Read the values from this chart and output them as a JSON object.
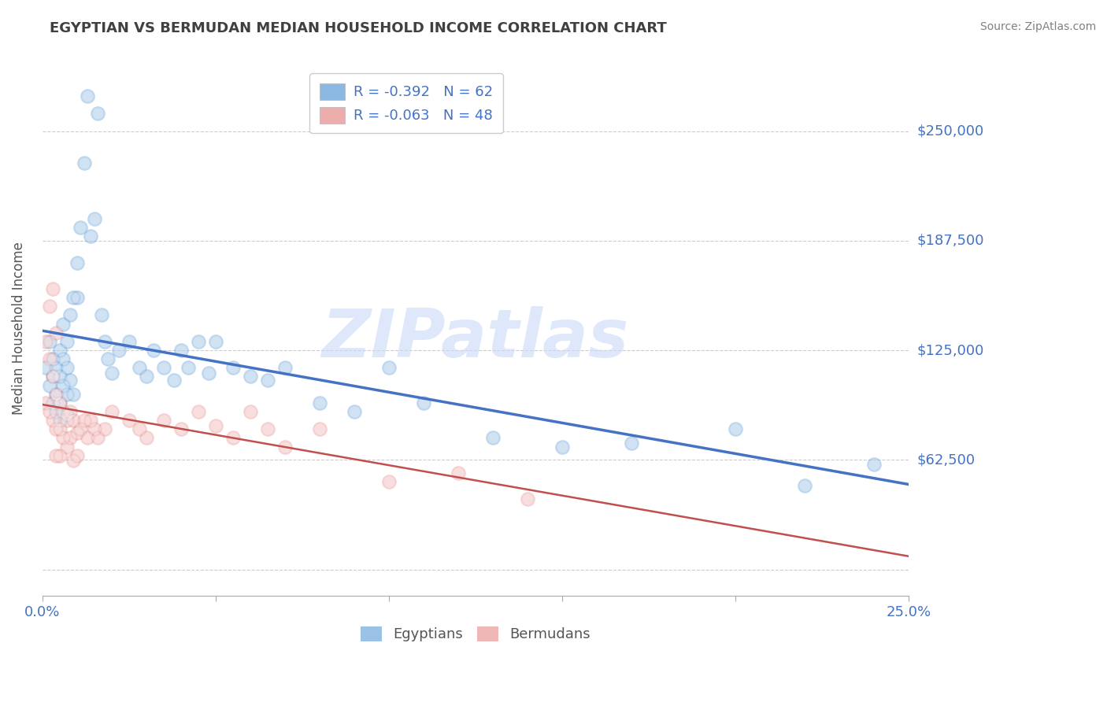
{
  "title": "EGYPTIAN VS BERMUDAN MEDIAN HOUSEHOLD INCOME CORRELATION CHART",
  "source": "Source: ZipAtlas.com",
  "ylabel": "Median Household Income",
  "xlim": [
    0.0,
    0.25
  ],
  "ylim": [
    -15000,
    290000
  ],
  "yticks": [
    0,
    62500,
    125000,
    187500,
    250000
  ],
  "ytick_labels": [
    "",
    "$62,500",
    "$125,000",
    "$187,500",
    "$250,000"
  ],
  "xticks": [
    0.0,
    0.05,
    0.1,
    0.15,
    0.2,
    0.25
  ],
  "xtick_labels": [
    "0.0%",
    "",
    "",
    "",
    "",
    "25.0%"
  ],
  "legend_entries": [
    {
      "label": "R = -0.392   N = 62",
      "color": "#6fa8dc"
    },
    {
      "label": "R = -0.063   N = 48",
      "color": "#ea9999"
    }
  ],
  "bottom_legend": [
    "Egyptians",
    "Bermudans"
  ],
  "watermark": "ZIPatlas",
  "blue_color": "#6fa8dc",
  "pink_color": "#ea9999",
  "line_blue": "#4472c4",
  "line_pink": "#c0504d",
  "title_color": "#404040",
  "axis_label_color": "#555555",
  "tick_label_color": "#4472c4",
  "grid_color": "#cccccc",
  "background_color": "#ffffff",
  "egyptians_x": [
    0.001,
    0.002,
    0.002,
    0.003,
    0.003,
    0.003,
    0.004,
    0.004,
    0.004,
    0.005,
    0.005,
    0.005,
    0.005,
    0.006,
    0.006,
    0.006,
    0.007,
    0.007,
    0.007,
    0.007,
    0.008,
    0.008,
    0.009,
    0.009,
    0.01,
    0.01,
    0.011,
    0.012,
    0.013,
    0.014,
    0.015,
    0.016,
    0.017,
    0.018,
    0.019,
    0.02,
    0.022,
    0.025,
    0.028,
    0.03,
    0.032,
    0.035,
    0.038,
    0.04,
    0.042,
    0.045,
    0.048,
    0.05,
    0.055,
    0.06,
    0.065,
    0.07,
    0.08,
    0.09,
    0.1,
    0.11,
    0.13,
    0.15,
    0.17,
    0.2,
    0.22,
    0.24
  ],
  "egyptians_y": [
    115000,
    130000,
    105000,
    120000,
    95000,
    110000,
    115000,
    100000,
    90000,
    125000,
    110000,
    95000,
    85000,
    140000,
    120000,
    105000,
    130000,
    115000,
    100000,
    88000,
    145000,
    108000,
    155000,
    100000,
    175000,
    155000,
    195000,
    232000,
    270000,
    190000,
    200000,
    260000,
    145000,
    130000,
    120000,
    112000,
    125000,
    130000,
    115000,
    110000,
    125000,
    115000,
    108000,
    125000,
    115000,
    130000,
    112000,
    130000,
    115000,
    110000,
    108000,
    115000,
    95000,
    90000,
    115000,
    95000,
    75000,
    70000,
    72000,
    80000,
    48000,
    60000
  ],
  "bermudans_x": [
    0.001,
    0.001,
    0.002,
    0.002,
    0.002,
    0.003,
    0.003,
    0.003,
    0.004,
    0.004,
    0.004,
    0.004,
    0.005,
    0.005,
    0.005,
    0.006,
    0.006,
    0.007,
    0.007,
    0.008,
    0.008,
    0.009,
    0.009,
    0.01,
    0.01,
    0.011,
    0.012,
    0.013,
    0.014,
    0.015,
    0.016,
    0.018,
    0.02,
    0.025,
    0.028,
    0.03,
    0.035,
    0.04,
    0.045,
    0.05,
    0.055,
    0.06,
    0.065,
    0.07,
    0.08,
    0.1,
    0.12,
    0.14
  ],
  "bermudans_y": [
    130000,
    95000,
    150000,
    120000,
    90000,
    160000,
    110000,
    85000,
    135000,
    100000,
    80000,
    65000,
    95000,
    80000,
    65000,
    90000,
    75000,
    85000,
    70000,
    90000,
    75000,
    85000,
    62000,
    78000,
    65000,
    80000,
    85000,
    75000,
    85000,
    80000,
    75000,
    80000,
    90000,
    85000,
    80000,
    75000,
    85000,
    80000,
    90000,
    82000,
    75000,
    90000,
    80000,
    70000,
    80000,
    50000,
    55000,
    40000
  ]
}
